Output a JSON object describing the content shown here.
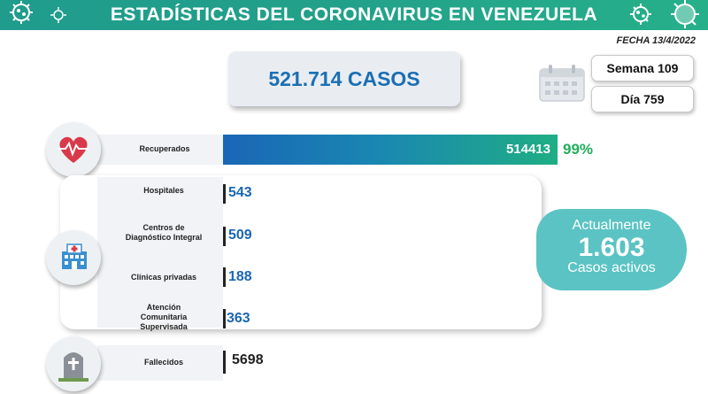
{
  "header": {
    "title": "ESTADÍSTICAS DEL CORONAVIRUS EN VENEZUELA",
    "date": "FECHA 13/4/2022"
  },
  "summary": {
    "cases": "521.714 CASOS",
    "week": "Semana 109",
    "day": "Día 759"
  },
  "active": {
    "line1": "Actualmente",
    "count": "1.603",
    "line3": "Casos activos"
  },
  "colors": {
    "header": "#1f9c8c",
    "accent_blue": "#1a66b6",
    "accent_green": "#1fae5a",
    "active_badge": "#5bc3c3"
  },
  "chart_data": {
    "type": "bar",
    "categories": [
      "Recuperados",
      "Hospitales",
      "Centros de Diagnóstico Integral",
      "Clínicas privadas",
      "Atención Comunitaria Supervisada",
      "Fallecidos"
    ],
    "values": [
      514413,
      543,
      509,
      188,
      363,
      5698
    ],
    "value_labels": [
      "514413",
      "543",
      "509",
      "188",
      "363",
      "5698"
    ],
    "recovered_percent": "99%",
    "label_lines": {
      "recuperados": [
        "Recuperados"
      ],
      "hospitales": [
        "Hospitales"
      ],
      "cdi": [
        "Centros de",
        "Diagnóstico Integral"
      ],
      "clinicas": [
        "Clínicas privadas"
      ],
      "acs": [
        "Atención",
        "Comunitaria",
        "Supervisada"
      ],
      "fallecidos": [
        "Fallecidos"
      ]
    }
  }
}
